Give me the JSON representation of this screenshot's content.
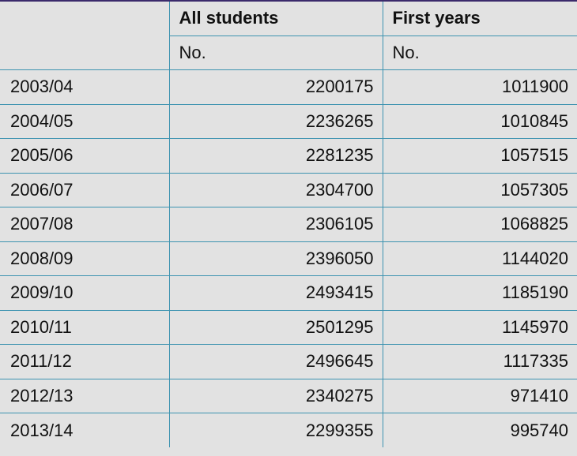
{
  "table": {
    "header": {
      "col1": "All students",
      "col2": "First years",
      "unit1": "No.",
      "unit2": "No."
    },
    "rows": [
      {
        "year": "2003/04",
        "all": "2200175",
        "first": "1011900"
      },
      {
        "year": "2004/05",
        "all": "2236265",
        "first": "1010845"
      },
      {
        "year": "2005/06",
        "all": "2281235",
        "first": "1057515"
      },
      {
        "year": "2006/07",
        "all": "2304700",
        "first": "1057305"
      },
      {
        "year": "2007/08",
        "all": "2306105",
        "first": "1068825"
      },
      {
        "year": "2008/09",
        "all": "2396050",
        "first": "1144020"
      },
      {
        "year": "2009/10",
        "all": "2493415",
        "first": "1185190"
      },
      {
        "year": "2010/11",
        "all": "2501295",
        "first": "1145970"
      },
      {
        "year": "2011/12",
        "all": "2496645",
        "first": "1117335"
      },
      {
        "year": "2012/13",
        "all": "2340275",
        "first": "971410"
      },
      {
        "year": "2013/14",
        "all": "2299355",
        "first": "995740"
      }
    ]
  }
}
